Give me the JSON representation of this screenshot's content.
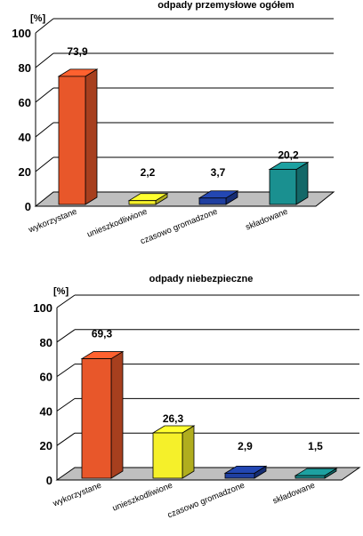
{
  "chart_data": [
    {
      "type": "bar",
      "title": "odpady przemysłowe ogółem",
      "ylabel": "[%]",
      "xlabel": "",
      "ylim": [
        0,
        100
      ],
      "yticks": [
        "0",
        "20",
        "40",
        "60",
        "80",
        "100"
      ],
      "grid": true,
      "categories": [
        "wykorzystane",
        "unieszkodliwione",
        "czasowo gromadzone",
        "składowane"
      ],
      "values": [
        73.9,
        2.2,
        3.7,
        20.2
      ],
      "data_labels": [
        "73,9",
        "2,2",
        "3,7",
        "20,2"
      ],
      "colors": [
        "#E8572A",
        "#F5F02A",
        "#1F3FA0",
        "#1A9090"
      ]
    },
    {
      "type": "bar",
      "title": "odpady niebezpieczne",
      "ylabel": "[%]",
      "xlabel": "",
      "ylim": [
        0,
        100
      ],
      "yticks": [
        "0",
        "20",
        "40",
        "60",
        "80",
        "100"
      ],
      "grid": true,
      "categories": [
        "wykorzystane",
        "unieszkodliwione",
        "czasowo gromadzone",
        "składowane"
      ],
      "values": [
        69.3,
        26.3,
        2.9,
        1.5
      ],
      "data_labels": [
        "69,3",
        "26,3",
        "2,9",
        "1,5"
      ],
      "colors": [
        "#E8572A",
        "#F5F02A",
        "#1F3FA0",
        "#1A9090"
      ]
    }
  ]
}
